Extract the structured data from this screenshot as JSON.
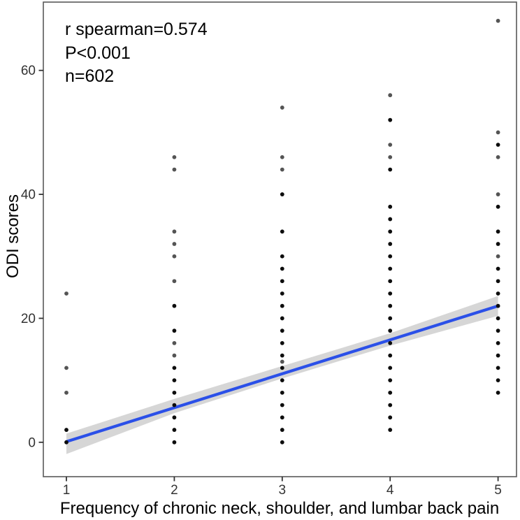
{
  "chart_data": {
    "type": "scatter",
    "title": "",
    "xlabel": "Frequency of chronic neck, shoulder, and lumbar back pain",
    "ylabel": "ODI scores",
    "annotations": [
      "r spearman=0.574",
      "P<0.001",
      "n=602"
    ],
    "stats": {
      "r_spearman": 0.574,
      "p_value": "<0.001",
      "n": 602
    },
    "x_ticks": [
      1,
      2,
      3,
      4,
      5
    ],
    "y_ticks": [
      0,
      20,
      40,
      60
    ],
    "xlim": [
      0.78,
      5.17
    ],
    "ylim": [
      -5.5,
      71.2
    ],
    "grid": "off",
    "legend": "none",
    "points": [
      {
        "x": 1,
        "dark": [
          0,
          2
        ],
        "light": [
          8,
          12,
          24
        ]
      },
      {
        "x": 2,
        "dark": [
          0,
          2,
          4,
          6,
          8,
          10,
          12,
          18,
          22
        ],
        "light": [
          14,
          16,
          26,
          30,
          32,
          34,
          44,
          46
        ]
      },
      {
        "x": 3,
        "dark": [
          0,
          2,
          4,
          6,
          8,
          10,
          12,
          14,
          16,
          18,
          20,
          22,
          24,
          26,
          28,
          30,
          34,
          40
        ],
        "light": [
          13,
          44,
          46,
          54
        ]
      },
      {
        "x": 4,
        "dark": [
          2,
          4,
          6,
          8,
          10,
          12,
          14,
          16,
          18,
          20,
          22,
          24,
          26,
          28,
          30,
          32,
          34,
          36,
          38,
          44,
          52
        ],
        "light": [
          46,
          48,
          56
        ]
      },
      {
        "x": 5,
        "dark": [
          8,
          10,
          12,
          14,
          16,
          18,
          20,
          22,
          24,
          26,
          28,
          32,
          34,
          38,
          48
        ],
        "light": [
          30,
          40,
          46,
          50,
          68
        ]
      }
    ],
    "regression": {
      "type": "linear",
      "x": [
        1,
        5
      ],
      "y": [
        0.1,
        22.0
      ]
    },
    "confidence_band": {
      "x": [
        1,
        2,
        3,
        4,
        5
      ],
      "upper": [
        1.4,
        7.0,
        12.3,
        17.6,
        23.6
      ],
      "lower": [
        -1.9,
        4.7,
        10.3,
        15.6,
        20.4
      ]
    },
    "colors": {
      "regression_line": "#2B50E8",
      "confidence_band": "#D6D6D6",
      "point_dark": "#0D0D0D",
      "point_light": "#545454",
      "panel_border": "#595959",
      "tick": "#333333",
      "background": "#FFFFFF"
    }
  }
}
